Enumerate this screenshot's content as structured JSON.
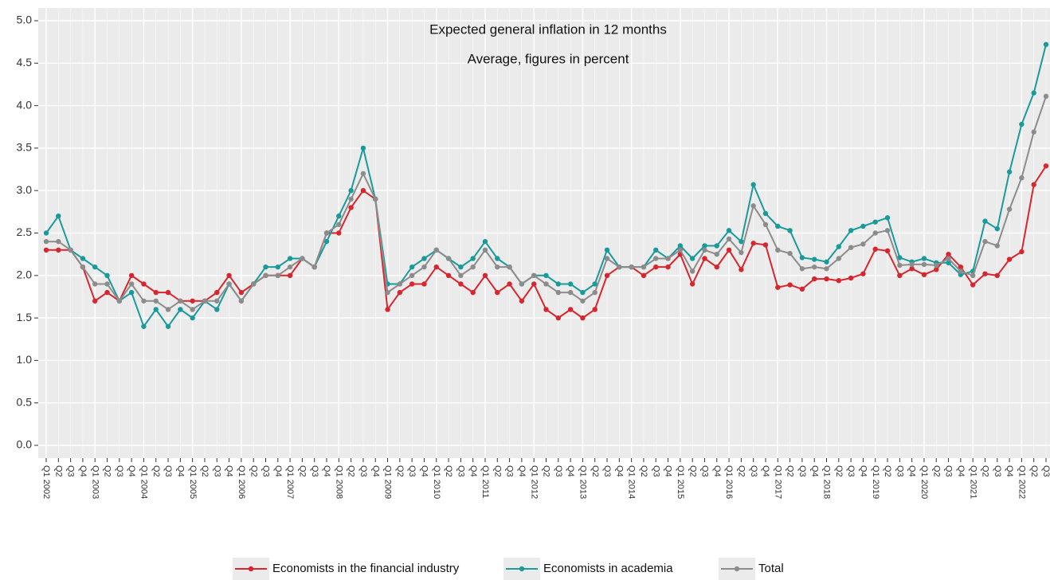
{
  "chart_data": {
    "type": "line",
    "title": "Expected general inflation in 12 months",
    "subtitle": "Average, figures in percent",
    "categories": [
      "Q1 2002",
      "Q2",
      "Q3",
      "Q4",
      "Q1 2003",
      "Q2",
      "Q3",
      "Q4",
      "Q1 2004",
      "Q2",
      "Q3",
      "Q4",
      "Q1 2005",
      "Q2",
      "Q3",
      "Q4",
      "Q1 2006",
      "Q2",
      "Q3",
      "Q4",
      "Q1 2007",
      "Q2",
      "Q3",
      "Q4",
      "Q1 2008",
      "Q2",
      "Q3",
      "Q4",
      "Q1 2009",
      "Q2",
      "Q3",
      "Q4",
      "Q1 2010",
      "Q2",
      "Q3",
      "Q4",
      "Q1 2011",
      "Q2",
      "Q3",
      "Q4",
      "Q1 2012",
      "Q2",
      "Q3",
      "Q4",
      "Q1 2013",
      "Q2",
      "Q3",
      "Q4",
      "Q1 2014",
      "Q2",
      "Q3",
      "Q4",
      "Q1 2015",
      "Q2",
      "Q3",
      "Q4",
      "Q1 2016",
      "Q2",
      "Q3",
      "Q4",
      "Q1 2017",
      "Q2",
      "Q3",
      "Q4",
      "Q1 2018",
      "Q2",
      "Q3",
      "Q4",
      "Q1 2019",
      "Q2",
      "Q3",
      "Q4",
      "Q1 2020",
      "Q2",
      "Q3",
      "Q4",
      "Q1 2021",
      "Q2",
      "Q3",
      "Q4",
      "Q1 2022",
      "Q2",
      "Q3"
    ],
    "series": [
      {
        "name": "Economists in the financial industry",
        "color": "#d7262e",
        "values": [
          2.3,
          2.3,
          2.3,
          2.1,
          1.7,
          1.8,
          1.7,
          2.0,
          1.9,
          1.8,
          1.8,
          1.7,
          1.7,
          1.7,
          1.8,
          2.0,
          1.8,
          1.9,
          2.0,
          2.0,
          2.0,
          2.2,
          2.1,
          2.5,
          2.5,
          2.8,
          3.0,
          2.9,
          1.6,
          1.8,
          1.9,
          1.9,
          2.1,
          2.0,
          1.9,
          1.8,
          2.0,
          1.8,
          1.9,
          1.7,
          1.9,
          1.6,
          1.5,
          1.6,
          1.5,
          1.6,
          2.0,
          2.1,
          2.1,
          2.0,
          2.1,
          2.1,
          2.25,
          1.9,
          2.2,
          2.1,
          2.3,
          2.07,
          2.38,
          2.36,
          1.86,
          1.89,
          1.84,
          1.96,
          1.96,
          1.94,
          1.97,
          2.02,
          2.31,
          2.29,
          2.0,
          2.08,
          2.01,
          2.07,
          2.25,
          2.1,
          1.89,
          2.02,
          2.0,
          2.19,
          2.28,
          3.07,
          3.29
        ]
      },
      {
        "name": "Economists in academia",
        "color": "#1a9a9a",
        "values": [
          2.5,
          2.7,
          2.3,
          2.2,
          2.1,
          2.0,
          1.7,
          1.8,
          1.4,
          1.6,
          1.4,
          1.6,
          1.5,
          1.7,
          1.6,
          1.9,
          1.7,
          1.9,
          2.1,
          2.1,
          2.2,
          2.2,
          2.1,
          2.4,
          2.7,
          3.0,
          3.5,
          2.9,
          1.9,
          1.9,
          2.1,
          2.2,
          2.3,
          2.2,
          2.1,
          2.2,
          2.4,
          2.2,
          2.1,
          1.9,
          2.0,
          2.0,
          1.9,
          1.9,
          1.8,
          1.9,
          2.3,
          2.1,
          2.1,
          2.1,
          2.3,
          2.2,
          2.35,
          2.2,
          2.35,
          2.35,
          2.53,
          2.4,
          3.07,
          2.73,
          2.58,
          2.53,
          2.21,
          2.19,
          2.16,
          2.34,
          2.53,
          2.58,
          2.63,
          2.68,
          2.21,
          2.16,
          2.2,
          2.15,
          2.15,
          2.01,
          2.05,
          2.64,
          2.55,
          3.22,
          3.78,
          4.15,
          4.72
        ]
      },
      {
        "name": "Total",
        "color": "#8c8c8c",
        "values": [
          2.4,
          2.4,
          2.3,
          2.1,
          1.9,
          1.9,
          1.7,
          1.9,
          1.7,
          1.7,
          1.6,
          1.7,
          1.6,
          1.7,
          1.7,
          1.9,
          1.7,
          1.9,
          2.0,
          2.0,
          2.1,
          2.2,
          2.1,
          2.5,
          2.6,
          2.9,
          3.2,
          2.9,
          1.8,
          1.9,
          2.0,
          2.1,
          2.3,
          2.2,
          2.0,
          2.1,
          2.3,
          2.1,
          2.1,
          1.9,
          2.0,
          1.9,
          1.8,
          1.8,
          1.7,
          1.8,
          2.2,
          2.1,
          2.1,
          2.1,
          2.2,
          2.2,
          2.3,
          2.05,
          2.3,
          2.25,
          2.43,
          2.27,
          2.82,
          2.6,
          2.3,
          2.26,
          2.08,
          2.1,
          2.08,
          2.2,
          2.33,
          2.37,
          2.5,
          2.53,
          2.12,
          2.13,
          2.13,
          2.12,
          2.2,
          2.05,
          2.0,
          2.4,
          2.35,
          2.78,
          3.15,
          3.69,
          4.11
        ]
      }
    ],
    "ylim": [
      -0.15,
      5.15
    ],
    "yticks": [
      {
        "value": 0,
        "label": "0.0"
      },
      {
        "value": 0.5,
        "label": "0.5"
      },
      {
        "value": 1,
        "label": "1.0"
      },
      {
        "value": 1.5,
        "label": "1.5"
      },
      {
        "value": 2,
        "label": "2.0"
      },
      {
        "value": 2.5,
        "label": "2.5"
      },
      {
        "value": 3,
        "label": "3.0"
      },
      {
        "value": 3.5,
        "label": "3.5"
      },
      {
        "value": 4,
        "label": "4.0"
      },
      {
        "value": 4.5,
        "label": "4.5"
      },
      {
        "value": 5,
        "label": "5.0"
      }
    ],
    "grid": true
  }
}
